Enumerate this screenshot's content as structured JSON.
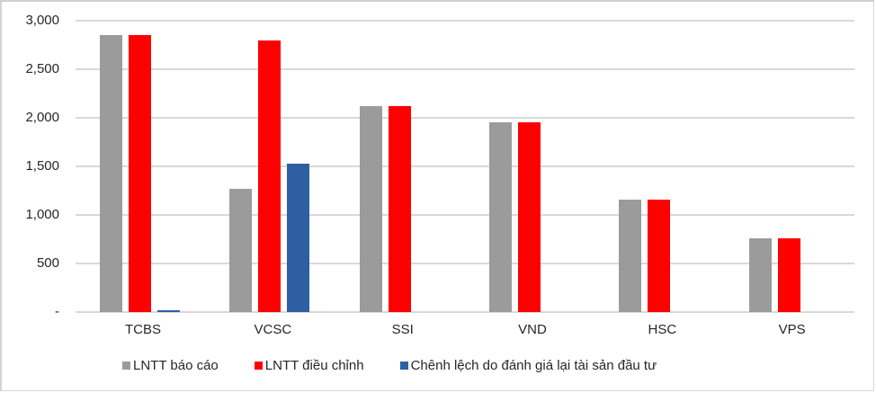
{
  "chart_data": {
    "type": "bar",
    "title": "",
    "xlabel": "",
    "ylabel": "",
    "ylim": [
      0,
      3000
    ],
    "yticks": [
      "-",
      "500",
      "1,000",
      "1,500",
      "2,000",
      "2,500",
      "3,000"
    ],
    "ytick_values": [
      0,
      500,
      1000,
      1500,
      2000,
      2500,
      3000
    ],
    "grid": true,
    "legend_position": "bottom",
    "categories": [
      "TCBS",
      "VCSC",
      "SSI",
      "VND",
      "HSC",
      "VPS"
    ],
    "series": [
      {
        "name": "LNTT báo cáo",
        "color": "#9b9b9b",
        "values": [
          2850,
          1270,
          2120,
          1950,
          1155,
          760
        ]
      },
      {
        "name": "LNTT điều chỉnh",
        "color": "#ff0000",
        "values": [
          2850,
          2795,
          2120,
          1950,
          1155,
          760
        ]
      },
      {
        "name": "Chênh lệch do đánh giá lại tài sản đầu tư",
        "color": "#2e5fa3",
        "values": [
          20,
          1530,
          0,
          0,
          0,
          0
        ]
      }
    ]
  },
  "legend": [
    {
      "label": "LNTT báo cáo",
      "color": "#9b9b9b"
    },
    {
      "label": "LNTT điều chỉnh",
      "color": "#ff0000"
    },
    {
      "label": "Chênh lệch do đánh giá lại tài sản đầu tư",
      "color": "#2e5fa3"
    }
  ]
}
